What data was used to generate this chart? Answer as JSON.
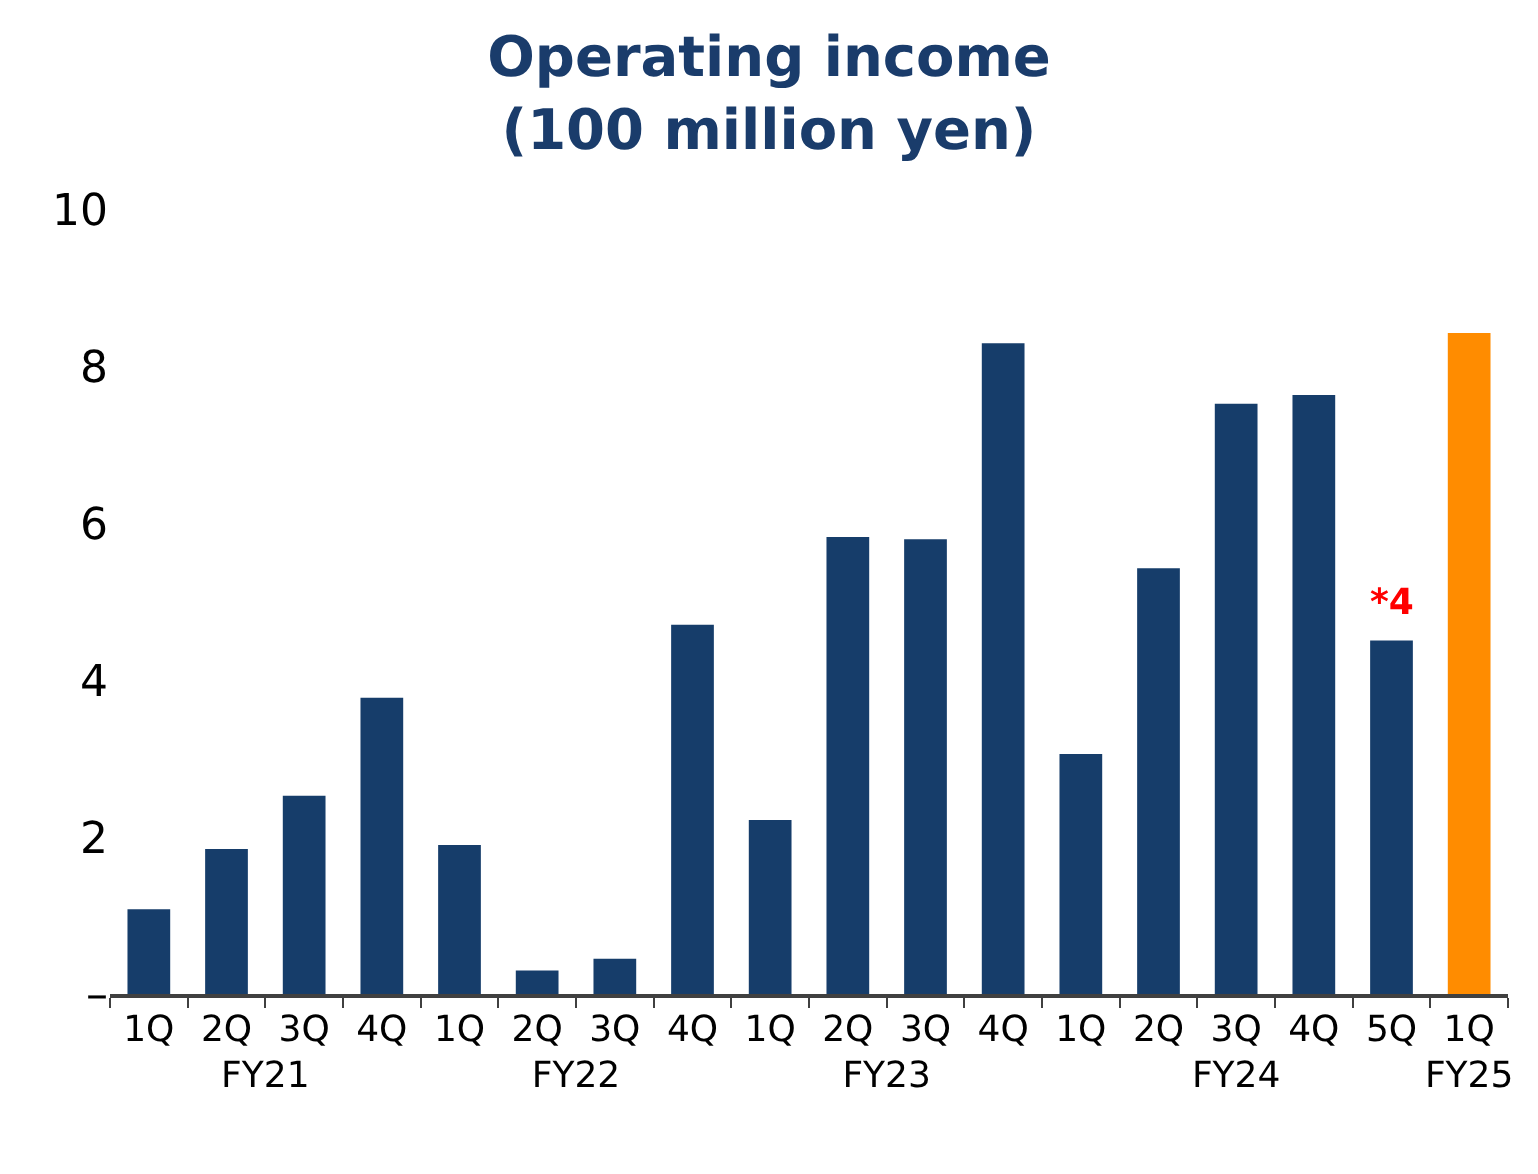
{
  "chart_data": {
    "type": "bar",
    "title": "Operating income\n(100 million yen)",
    "categories": [
      "1Q",
      "2Q",
      "3Q",
      "4Q",
      "1Q",
      "2Q",
      "3Q",
      "4Q",
      "1Q",
      "2Q",
      "3Q",
      "4Q",
      "1Q",
      "2Q",
      "3Q",
      "4Q",
      "5Q",
      "1Q"
    ],
    "values": [
      1.08,
      1.85,
      2.53,
      3.78,
      1.9,
      0.3,
      0.45,
      4.71,
      2.22,
      5.83,
      5.8,
      8.3,
      3.06,
      5.43,
      7.53,
      7.64,
      4.51,
      8.43
    ],
    "colors": [
      "#163d6a",
      "#163d6a",
      "#163d6a",
      "#163d6a",
      "#163d6a",
      "#163d6a",
      "#163d6a",
      "#163d6a",
      "#163d6a",
      "#163d6a",
      "#163d6a",
      "#163d6a",
      "#163d6a",
      "#163d6a",
      "#163d6a",
      "#163d6a",
      "#163d6a",
      "#ff8c00"
    ],
    "ylim": [
      0,
      10
    ],
    "yticks": [
      {
        "value": 0,
        "label": "–"
      },
      2,
      4,
      6,
      8,
      10
    ],
    "annotations": [
      {
        "text": "*4",
        "x": "5Q",
        "y": 4.51
      },
      "FY21",
      "FY22",
      "FY23",
      "FY24",
      "FY25"
    ]
  }
}
